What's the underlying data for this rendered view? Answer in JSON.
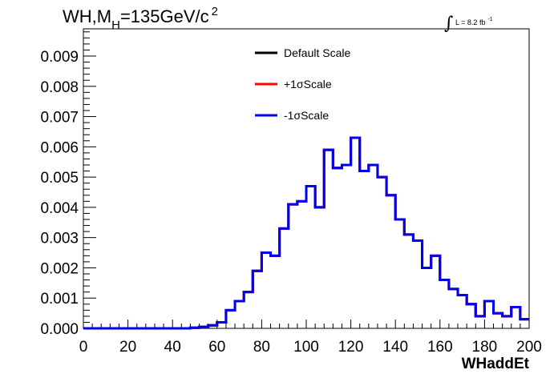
{
  "chart_data": {
    "type": "line",
    "title": {
      "prefix": "WH,M",
      "sub": "H",
      "main": "=135GeV/c",
      "sup": "2"
    },
    "lumi": {
      "integral": "∫",
      "text": "L = 8.2 fb",
      "sup": "-1"
    },
    "xlabel": "WHaddEt",
    "ylabel": "",
    "xlim": [
      0,
      200
    ],
    "ylim": [
      0,
      0.0099
    ],
    "x_ticks": [
      0,
      20,
      40,
      60,
      80,
      100,
      120,
      140,
      160,
      180,
      200
    ],
    "x_tick_labels": [
      "0",
      "20",
      "40",
      "60",
      "80",
      "100",
      "120",
      "140",
      "160",
      "180",
      "200"
    ],
    "y_ticks": [
      0,
      0.001,
      0.002,
      0.003,
      0.004,
      0.005,
      0.006,
      0.007,
      0.008,
      0.009
    ],
    "y_tick_labels": [
      "0.000",
      "0.001",
      "0.002",
      "0.003",
      "0.004",
      "0.005",
      "0.006",
      "0.007",
      "0.008",
      "0.009"
    ],
    "bin_edges": [
      0,
      4,
      8,
      12,
      16,
      20,
      24,
      28,
      32,
      36,
      40,
      44,
      48,
      52,
      56,
      60,
      64,
      68,
      72,
      76,
      80,
      84,
      88,
      92,
      96,
      100,
      104,
      108,
      112,
      116,
      120,
      124,
      128,
      132,
      136,
      140,
      144,
      148,
      152,
      156,
      160,
      164,
      168,
      172,
      176,
      180,
      184,
      188,
      192,
      196,
      200
    ],
    "series": [
      {
        "name": "Default Scale",
        "color": "#000000",
        "values": [
          0,
          0,
          0,
          0,
          0,
          0,
          0,
          0,
          0,
          0,
          0,
          0,
          2e-05,
          5e-05,
          0.0001,
          0.0002,
          0.0006,
          0.0009,
          0.0012,
          0.0019,
          0.0025,
          0.0024,
          0.0033,
          0.0041,
          0.0042,
          0.0047,
          0.004,
          0.0059,
          0.0053,
          0.0054,
          0.0063,
          0.0052,
          0.0054,
          0.005,
          0.0044,
          0.0036,
          0.0031,
          0.0029,
          0.002,
          0.0024,
          0.0016,
          0.0013,
          0.0011,
          0.0008,
          0.0004,
          0.0009,
          0.0005,
          0.0004,
          0.0007,
          0.0003
        ]
      },
      {
        "name": "+1σScale",
        "color": "#ff0000",
        "values": [
          0,
          0,
          0,
          0,
          0,
          0,
          0,
          0,
          0,
          0,
          0,
          0,
          2e-05,
          5e-05,
          0.0001,
          0.0002,
          0.0006,
          0.0009,
          0.0012,
          0.0019,
          0.0025,
          0.0024,
          0.0033,
          0.0041,
          0.0042,
          0.0047,
          0.004,
          0.0059,
          0.0053,
          0.0054,
          0.0063,
          0.0052,
          0.0054,
          0.005,
          0.0044,
          0.0036,
          0.0031,
          0.0029,
          0.002,
          0.0024,
          0.0016,
          0.0013,
          0.0011,
          0.0008,
          0.0004,
          0.0009,
          0.0005,
          0.0004,
          0.0007,
          0.0003
        ]
      },
      {
        "name": "-1σScale",
        "color": "#0000ee",
        "values": [
          0,
          0,
          0,
          0,
          0,
          0,
          0,
          0,
          0,
          0,
          0,
          0,
          2e-05,
          5e-05,
          0.0001,
          0.0002,
          0.0006,
          0.0009,
          0.0012,
          0.0019,
          0.0025,
          0.0024,
          0.0033,
          0.0041,
          0.0042,
          0.0047,
          0.004,
          0.0059,
          0.0053,
          0.0054,
          0.0063,
          0.0052,
          0.0054,
          0.005,
          0.0044,
          0.0036,
          0.0031,
          0.0029,
          0.002,
          0.0024,
          0.0016,
          0.0013,
          0.0011,
          0.0008,
          0.0004,
          0.0009,
          0.0005,
          0.0004,
          0.0007,
          0.0003
        ]
      }
    ],
    "legend_position": "top-center",
    "grid": false
  }
}
